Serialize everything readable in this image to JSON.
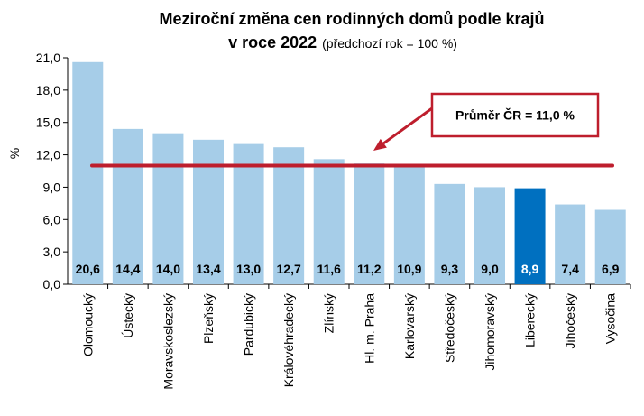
{
  "chart_data": {
    "type": "bar",
    "title_line1": "Meziroční změna cen rodinných domů podle krajů",
    "title_line2": "v roce 2022",
    "subtitle": "(předchozí rok = 100 %)",
    "ylabel": "%",
    "xlabel": "",
    "ylim": [
      0,
      21
    ],
    "yticks": [
      "0,0",
      "3,0",
      "6,0",
      "9,0",
      "12,0",
      "15,0",
      "18,0",
      "21,0"
    ],
    "categories": [
      "Olomoucký",
      "Ústecký",
      "Moravskoslezský",
      "Plzeňský",
      "Pardubický",
      "Královéhradecký",
      "Zlínský",
      "Hl. m. Praha",
      "Karlovarský",
      "Středočeský",
      "Jihomoravský",
      "Liberecký",
      "Jihočeský",
      "Vysočina"
    ],
    "values": [
      20.6,
      14.4,
      14.0,
      13.4,
      13.0,
      12.7,
      11.6,
      11.2,
      10.9,
      9.3,
      9.0,
      8.9,
      7.4,
      6.9
    ],
    "value_labels": [
      "20,6",
      "14,4",
      "14,0",
      "13,4",
      "13,0",
      "12,7",
      "11,6",
      "11,2",
      "10,9",
      "9,3",
      "9,0",
      "8,9",
      "7,4",
      "6,9"
    ],
    "highlight_index": 11,
    "average": {
      "value": 11.0,
      "label": "Průměr ČR = 11,0 %"
    },
    "grid": false,
    "legend": "none",
    "colors": {
      "bar": "#a6cde8",
      "highlight": "#0070c0",
      "average_line": "#be1e2d"
    }
  }
}
